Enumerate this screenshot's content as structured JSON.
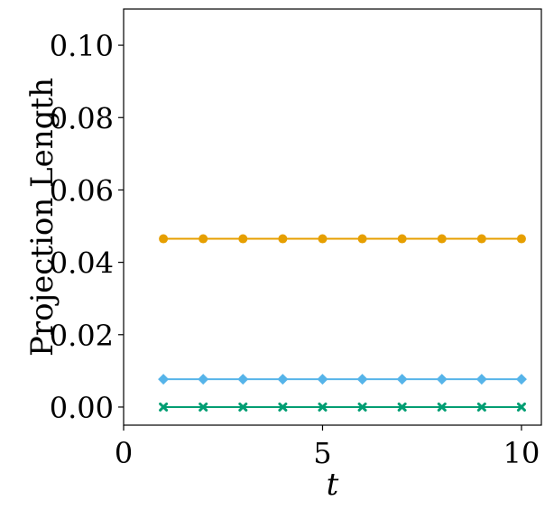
{
  "chart_data": {
    "type": "line",
    "title": "",
    "xlabel": "t",
    "ylabel": "Projection Length",
    "xlim": [
      0,
      10.5
    ],
    "ylim": [
      -0.005,
      0.11
    ],
    "xticks": [
      0,
      5,
      10
    ],
    "xtick_labels": [
      "0",
      "5",
      "10"
    ],
    "yticks": [
      0.0,
      0.02,
      0.04,
      0.06,
      0.08,
      0.1
    ],
    "ytick_labels": [
      "0.00",
      "0.02",
      "0.04",
      "0.06",
      "0.08",
      "0.10"
    ],
    "grid": false,
    "legend": false,
    "x": [
      1,
      2,
      3,
      4,
      5,
      6,
      7,
      8,
      9,
      10
    ],
    "series": [
      {
        "color": "#E69F00",
        "marker": "circle",
        "values": [
          0.0465,
          0.0465,
          0.0465,
          0.0465,
          0.0465,
          0.0465,
          0.0465,
          0.0465,
          0.0465,
          0.0465
        ]
      },
      {
        "color": "#56B4E9",
        "marker": "diamond",
        "values": [
          0.0077,
          0.0077,
          0.0077,
          0.0077,
          0.0077,
          0.0077,
          0.0077,
          0.0077,
          0.0077,
          0.0077
        ]
      },
      {
        "color": "#009E73",
        "marker": "x",
        "values": [
          0.0,
          0.0,
          0.0,
          0.0,
          0.0,
          0.0,
          0.0,
          0.0,
          0.0,
          0.0
        ]
      }
    ]
  }
}
